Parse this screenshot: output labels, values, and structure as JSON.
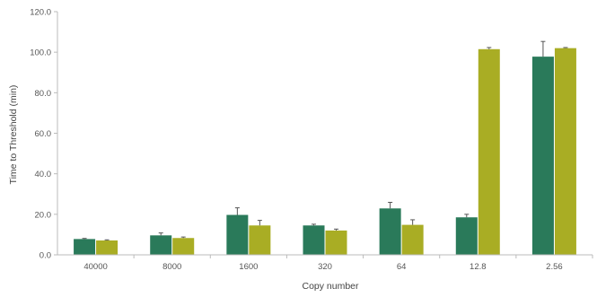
{
  "chart_data": {
    "type": "bar",
    "title": "",
    "xlabel": "Copy number",
    "ylabel": "Time to Threshold (min)",
    "ylim": [
      0,
      120
    ],
    "yticks": [
      "0.0",
      "20.0",
      "40.0",
      "60.0",
      "80.0",
      "100.0",
      "120.0"
    ],
    "yticks_values": [
      0,
      20,
      40,
      60,
      80,
      100,
      120
    ],
    "grid": false,
    "legend": "none",
    "categories": [
      "40000",
      "8000",
      "1600",
      "320",
      "64",
      "12.8",
      "2.56"
    ],
    "series": [
      {
        "color": "#2a7a5a",
        "values": [
          7.8,
          9.6,
          19.7,
          14.5,
          22.9,
          18.5,
          97.8
        ],
        "errors": [
          0.3,
          1.2,
          3.5,
          0.6,
          3.0,
          1.5,
          7.5
        ]
      },
      {
        "color": "#a9ad24",
        "values": [
          7.1,
          8.3,
          14.5,
          12.0,
          14.8,
          101.5,
          102.0
        ],
        "errors": [
          0.3,
          0.5,
          2.5,
          0.7,
          2.5,
          0.8,
          0.3
        ]
      }
    ]
  }
}
